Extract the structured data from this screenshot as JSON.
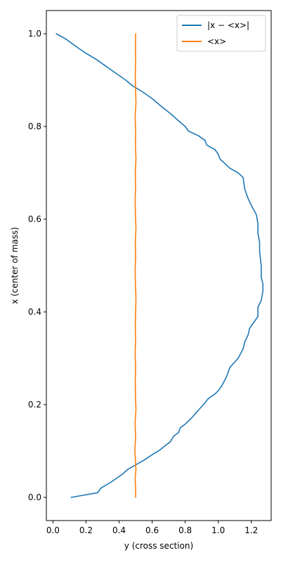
{
  "chart_data": {
    "type": "line",
    "xlabel": "y (cross section)",
    "ylabel": "x (center of mass)",
    "xlim": [
      -0.04,
      1.32
    ],
    "ylim": [
      -0.05,
      1.05
    ],
    "xticks": [
      0.0,
      0.2,
      0.4,
      0.6,
      0.8,
      1.0,
      1.2
    ],
    "xtick_labels": [
      "0.0",
      "0.2",
      "0.4",
      "0.6",
      "0.8",
      "1.0",
      "1.2"
    ],
    "yticks": [
      0.0,
      0.2,
      0.4,
      0.6,
      0.8,
      1.0
    ],
    "ytick_labels": [
      "0.0",
      "0.2",
      "0.4",
      "0.6",
      "0.8",
      "1.0"
    ],
    "grid": false,
    "legend_position": "top-right",
    "series": [
      {
        "name": "|x − <x>|",
        "color": "#1f77b4",
        "points": [
          [
            0.11,
            0.0
          ],
          [
            0.27,
            0.01
          ],
          [
            0.29,
            0.02
          ],
          [
            0.36,
            0.035
          ],
          [
            0.42,
            0.05
          ],
          [
            0.45,
            0.06
          ],
          [
            0.5,
            0.07
          ],
          [
            0.55,
            0.08
          ],
          [
            0.6,
            0.092
          ],
          [
            0.65,
            0.103
          ],
          [
            0.68,
            0.112
          ],
          [
            0.71,
            0.12
          ],
          [
            0.73,
            0.132
          ],
          [
            0.76,
            0.14
          ],
          [
            0.77,
            0.15
          ],
          [
            0.8,
            0.158
          ],
          [
            0.83,
            0.168
          ],
          [
            0.86,
            0.18
          ],
          [
            0.89,
            0.192
          ],
          [
            0.91,
            0.2
          ],
          [
            0.94,
            0.213
          ],
          [
            0.98,
            0.223
          ],
          [
            1.0,
            0.23
          ],
          [
            1.02,
            0.24
          ],
          [
            1.05,
            0.26
          ],
          [
            1.07,
            0.28
          ],
          [
            1.1,
            0.292
          ],
          [
            1.12,
            0.3
          ],
          [
            1.15,
            0.32
          ],
          [
            1.16,
            0.335
          ],
          [
            1.18,
            0.35
          ],
          [
            1.19,
            0.365
          ],
          [
            1.22,
            0.38
          ],
          [
            1.24,
            0.39
          ],
          [
            1.24,
            0.41
          ],
          [
            1.26,
            0.425
          ],
          [
            1.27,
            0.445
          ],
          [
            1.27,
            0.46
          ],
          [
            1.26,
            0.475
          ],
          [
            1.26,
            0.5
          ],
          [
            1.25,
            0.53
          ],
          [
            1.25,
            0.55
          ],
          [
            1.24,
            0.57
          ],
          [
            1.24,
            0.59
          ],
          [
            1.23,
            0.61
          ],
          [
            1.2,
            0.63
          ],
          [
            1.18,
            0.645
          ],
          [
            1.16,
            0.665
          ],
          [
            1.15,
            0.69
          ],
          [
            1.12,
            0.7
          ],
          [
            1.07,
            0.71
          ],
          [
            1.04,
            0.72
          ],
          [
            1.01,
            0.73
          ],
          [
            1.0,
            0.74
          ],
          [
            0.98,
            0.75
          ],
          [
            0.93,
            0.76
          ],
          [
            0.92,
            0.77
          ],
          [
            0.88,
            0.78
          ],
          [
            0.82,
            0.79
          ],
          [
            0.8,
            0.8
          ],
          [
            0.76,
            0.812
          ],
          [
            0.72,
            0.825
          ],
          [
            0.66,
            0.842
          ],
          [
            0.6,
            0.86
          ],
          [
            0.54,
            0.875
          ],
          [
            0.48,
            0.888
          ],
          [
            0.44,
            0.9
          ],
          [
            0.38,
            0.915
          ],
          [
            0.32,
            0.93
          ],
          [
            0.26,
            0.945
          ],
          [
            0.19,
            0.96
          ],
          [
            0.13,
            0.975
          ],
          [
            0.08,
            0.988
          ],
          [
            0.02,
            1.0
          ]
        ]
      },
      {
        "name": "<x>",
        "color": "#ff7f0e",
        "points": [
          [
            0.5,
            0.0
          ],
          [
            0.5,
            0.02
          ],
          [
            0.497,
            0.04
          ],
          [
            0.502,
            0.06
          ],
          [
            0.499,
            0.08
          ],
          [
            0.495,
            0.1
          ],
          [
            0.5,
            0.13
          ],
          [
            0.497,
            0.16
          ],
          [
            0.502,
            0.19
          ],
          [
            0.499,
            0.22
          ],
          [
            0.498,
            0.25
          ],
          [
            0.5,
            0.28
          ],
          [
            0.497,
            0.31
          ],
          [
            0.5,
            0.34
          ],
          [
            0.498,
            0.37
          ],
          [
            0.5,
            0.4
          ],
          [
            0.502,
            0.43
          ],
          [
            0.499,
            0.46
          ],
          [
            0.497,
            0.49
          ],
          [
            0.5,
            0.52
          ],
          [
            0.498,
            0.55
          ],
          [
            0.502,
            0.58
          ],
          [
            0.499,
            0.61
          ],
          [
            0.497,
            0.64
          ],
          [
            0.5,
            0.67
          ],
          [
            0.498,
            0.7
          ],
          [
            0.502,
            0.73
          ],
          [
            0.499,
            0.76
          ],
          [
            0.5,
            0.79
          ],
          [
            0.497,
            0.82
          ],
          [
            0.502,
            0.85
          ],
          [
            0.5,
            0.88
          ],
          [
            0.498,
            0.91
          ],
          [
            0.5,
            0.94
          ],
          [
            0.499,
            0.97
          ],
          [
            0.5,
            1.0
          ]
        ]
      }
    ]
  }
}
